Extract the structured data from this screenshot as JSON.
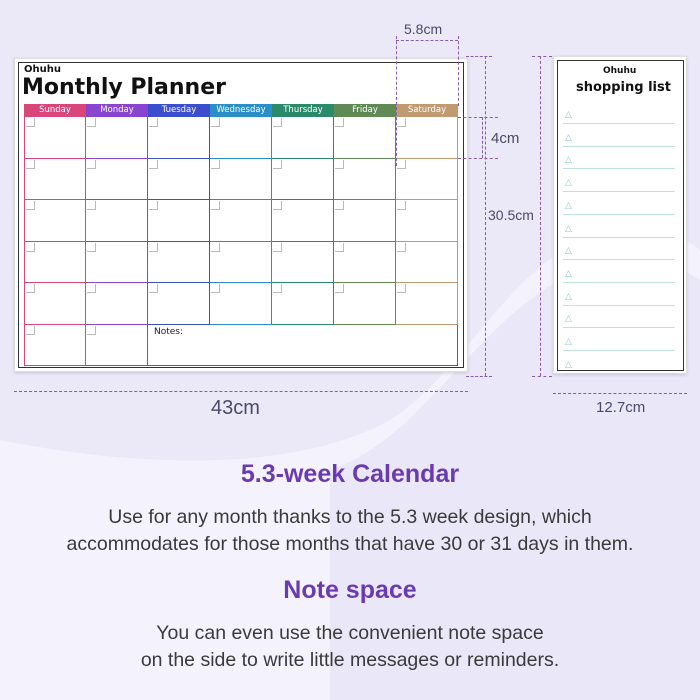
{
  "planner": {
    "brand": "Ohuhu",
    "title": "Monthly Planner",
    "notes_label": "Notes:",
    "days": [
      {
        "label": "Sunday",
        "color": "#d9467a"
      },
      {
        "label": "Monday",
        "color": "#8a45d0"
      },
      {
        "label": "Tuesday",
        "color": "#3b4fcc"
      },
      {
        "label": "Wednesday",
        "color": "#2a8fc8"
      },
      {
        "label": "Thursday",
        "color": "#2a8a6a"
      },
      {
        "label": "Friday",
        "color": "#5f8a55"
      },
      {
        "label": "Saturday",
        "color": "#c09a70"
      }
    ],
    "weeks": 6
  },
  "shopping_list": {
    "brand": "Ohuhu",
    "title": "shopping list",
    "lines": 12
  },
  "dimensions": {
    "column_width": "5.8cm",
    "row_height": "4cm",
    "height": "30.5cm",
    "width": "43cm",
    "list_width": "12.7cm"
  },
  "feature1": {
    "heading": "5.3-week Calendar",
    "text": [
      "Use for any month thanks to the 5.3 week design, which",
      "accommodates for those months that have 30 or 31 days in them."
    ]
  },
  "feature2": {
    "heading": "Note space",
    "text": [
      "You can even use the convenient note space",
      "on the side to write little messages or reminders."
    ]
  }
}
